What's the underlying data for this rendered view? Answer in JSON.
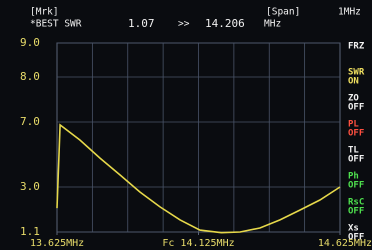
{
  "chart_data": {
    "type": "line",
    "marker": {
      "tag": "[Mrk]",
      "label": "*BEST SWR",
      "value": 1.07,
      "arrow": ">>",
      "frequency": 14.206,
      "unit": "MHz"
    },
    "span": {
      "tag": "[Span]",
      "value": "1MHz"
    },
    "menu": [
      {
        "label": "FRZ"
      },
      {
        "label": "SWR",
        "state": "ON"
      },
      {
        "label": "ZO",
        "state": "OFF"
      },
      {
        "label": "PL",
        "state": "OFF"
      },
      {
        "label": "TL",
        "state": "OFF"
      },
      {
        "label": "Ph",
        "state": "OFF"
      },
      {
        "label": "RsC",
        "state": "OFF"
      },
      {
        "label": "Xs",
        "state": "OFF"
      }
    ],
    "x": [
      13.625,
      13.636,
      13.706,
      13.777,
      13.848,
      13.918,
      13.989,
      14.06,
      14.13,
      14.206,
      14.272,
      14.342,
      14.413,
      14.484,
      14.554,
      14.625
    ],
    "series": [
      {
        "name": "SWR",
        "color": "#e6d84a",
        "values": [
          2.11,
          6.82,
          5.89,
          4.78,
          3.74,
          2.79,
          2.16,
          1.61,
          1.18,
          1.07,
          1.1,
          1.27,
          1.61,
          2.03,
          2.45,
          3.0
        ]
      }
    ],
    "xlim": [
      13.625,
      14.625
    ],
    "xticks": [
      {
        "value": 13.625,
        "label": "13.625MHz"
      },
      {
        "value": 14.125,
        "label": "Fc 14.125MHz"
      },
      {
        "value": 14.625,
        "label": "14.625MHz"
      }
    ],
    "ylim": [
      1.1,
      9.0
    ],
    "yticks": [
      9.0,
      8.0,
      7.0,
      3.0,
      1.1
    ],
    "ytick_labels": [
      "9.0",
      "8.0",
      "7.0",
      "3.0",
      "1.1"
    ],
    "grid": true
  }
}
